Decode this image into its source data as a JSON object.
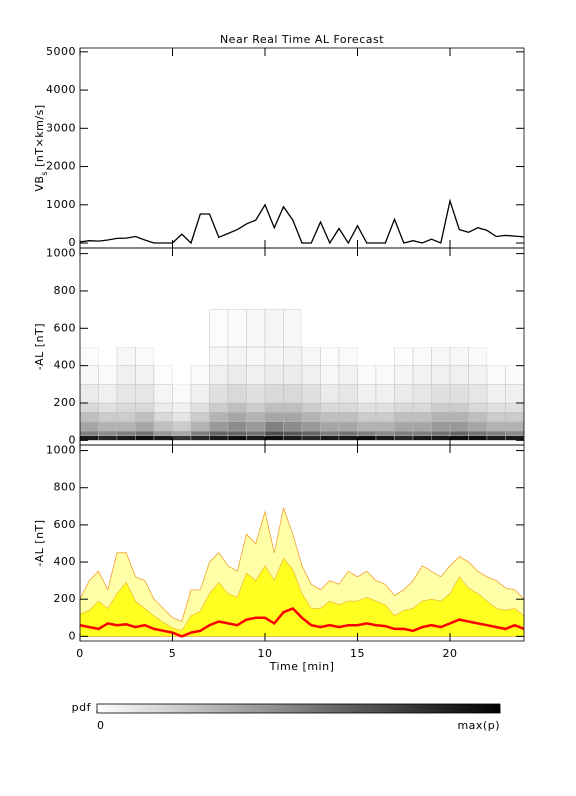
{
  "chart_data": [
    {
      "type": "line",
      "title": "Near Real Time AL Forecast",
      "ylabel": "VB",
      "ylabel_sub": "s",
      "ylabel_unit": "[nT×km/s]",
      "xlim": [
        0,
        24
      ],
      "xticks": [
        0,
        5,
        10,
        15,
        20
      ],
      "xticklabels": false,
      "ylim": [
        -130,
        5100
      ],
      "yticks": [
        0,
        1000,
        2000,
        3000,
        4000,
        5000
      ],
      "x": [
        0,
        0.5,
        1,
        1.5,
        2,
        2.5,
        3,
        3.5,
        4,
        4.5,
        5,
        5.5,
        6,
        6.5,
        7,
        7.5,
        8,
        8.5,
        9,
        9.5,
        10,
        10.5,
        11,
        11.5,
        12,
        12.5,
        13,
        13.5,
        14,
        14.5,
        15,
        15.5,
        16,
        16.5,
        17,
        17.5,
        18,
        18.5,
        19,
        19.5,
        20,
        20.5,
        21,
        21.5,
        22,
        22.5,
        23,
        23.5,
        24
      ],
      "series": [
        {
          "color": "#000000",
          "values": [
            30,
            60,
            50,
            80,
            120,
            130,
            170,
            80,
            0,
            0,
            0,
            230,
            0,
            760,
            760,
            150,
            250,
            350,
            500,
            600,
            1000,
            400,
            950,
            600,
            0,
            0,
            550,
            0,
            380,
            0,
            450,
            0,
            0,
            0,
            620,
            0,
            60,
            0,
            100,
            0,
            1100,
            350,
            280,
            400,
            330,
            170,
            200,
            180,
            160
          ]
        }
      ]
    },
    {
      "type": "heatmap",
      "ylabel": "-AL [nT]",
      "xlim": [
        0,
        24
      ],
      "xticks": [
        0,
        5,
        10,
        15,
        20
      ],
      "xticklabels": false,
      "ylim": [
        -25,
        1030
      ],
      "yticks": [
        0,
        200,
        400,
        600,
        800,
        1000
      ],
      "xbins": [
        0,
        1,
        2,
        3,
        4,
        5,
        6,
        7,
        8,
        9,
        10,
        11,
        12,
        13,
        14,
        15,
        16,
        17,
        18,
        19,
        20,
        21,
        22,
        23,
        24
      ],
      "ybins": [
        0,
        25,
        50,
        100,
        150,
        200,
        300,
        400,
        500,
        700
      ],
      "z": [
        [
          0.9,
          0.85,
          0.9,
          0.95,
          0.9,
          0.8,
          0.85,
          0.9,
          0.95,
          0.9,
          0.95,
          0.9,
          0.85,
          0.9,
          0.9,
          0.95,
          0.9,
          0.85,
          0.9,
          0.9,
          0.95,
          0.95,
          0.9,
          0.9
        ],
        [
          0.5,
          0.45,
          0.5,
          0.55,
          0.4,
          0.35,
          0.5,
          0.6,
          0.6,
          0.55,
          0.7,
          0.65,
          0.6,
          0.5,
          0.55,
          0.5,
          0.45,
          0.5,
          0.5,
          0.55,
          0.6,
          0.55,
          0.5,
          0.45
        ],
        [
          0.35,
          0.3,
          0.3,
          0.35,
          0.25,
          0.2,
          0.3,
          0.4,
          0.45,
          0.4,
          0.5,
          0.45,
          0.4,
          0.35,
          0.35,
          0.3,
          0.3,
          0.35,
          0.35,
          0.4,
          0.4,
          0.35,
          0.3,
          0.3
        ],
        [
          0.25,
          0.2,
          0.2,
          0.25,
          0.15,
          0.1,
          0.2,
          0.3,
          0.35,
          0.3,
          0.35,
          0.35,
          0.3,
          0.25,
          0.25,
          0.2,
          0.2,
          0.25,
          0.25,
          0.3,
          0.3,
          0.25,
          0.2,
          0.2
        ],
        [
          0.15,
          0.12,
          0.15,
          0.15,
          0.08,
          0.05,
          0.12,
          0.2,
          0.25,
          0.2,
          0.25,
          0.25,
          0.2,
          0.15,
          0.15,
          0.12,
          0.12,
          0.15,
          0.15,
          0.2,
          0.2,
          0.15,
          0.12,
          0.12
        ],
        [
          0.08,
          0.06,
          0.1,
          0.1,
          0.04,
          0.02,
          0.06,
          0.12,
          0.15,
          0.12,
          0.15,
          0.15,
          0.12,
          0.08,
          0.1,
          0.06,
          0.06,
          0.08,
          0.1,
          0.12,
          0.12,
          0.1,
          0.06,
          0.06
        ],
        [
          0.03,
          0.02,
          0.06,
          0.05,
          0.01,
          0,
          0.02,
          0.06,
          0.08,
          0.06,
          0.08,
          0.08,
          0.06,
          0.03,
          0.05,
          0.02,
          0.02,
          0.04,
          0.05,
          0.06,
          0.06,
          0.05,
          0.02,
          0.02
        ],
        [
          0.01,
          0,
          0.03,
          0.02,
          0,
          0,
          0,
          0.03,
          0.04,
          0.03,
          0.04,
          0.05,
          0.03,
          0.01,
          0.02,
          0,
          0,
          0.01,
          0.02,
          0.03,
          0.03,
          0.02,
          0,
          0
        ],
        [
          0,
          0,
          0,
          0,
          0,
          0,
          0,
          0.01,
          0.02,
          0.03,
          0.04,
          0.03,
          0,
          0,
          0,
          0,
          0,
          0,
          0,
          0,
          0,
          0,
          0,
          0
        ]
      ]
    },
    {
      "type": "band",
      "ylabel": "-AL [nT]",
      "xlabel": "Time [min]",
      "xlim": [
        0,
        24
      ],
      "xticks": [
        0,
        5,
        10,
        15,
        20
      ],
      "xticklabels": true,
      "ylim": [
        -25,
        1030
      ],
      "yticks": [
        0,
        200,
        400,
        600,
        800,
        1000
      ],
      "x": [
        0,
        0.5,
        1,
        1.5,
        2,
        2.5,
        3,
        3.5,
        4,
        4.5,
        5,
        5.5,
        6,
        6.5,
        7,
        7.5,
        8,
        8.5,
        9,
        9.5,
        10,
        10.5,
        11,
        11.5,
        12,
        12.5,
        13,
        13.5,
        14,
        14.5,
        15,
        15.5,
        16,
        16.5,
        17,
        17.5,
        18,
        18.5,
        19,
        19.5,
        20,
        20.5,
        21,
        21.5,
        22,
        22.5,
        23,
        23.5,
        24
      ],
      "series": [
        {
          "color": "#ffffa8",
          "edge_color": "#f0a030",
          "kind": "area",
          "values": [
            200,
            300,
            350,
            250,
            450,
            450,
            320,
            300,
            200,
            150,
            100,
            80,
            250,
            250,
            400,
            450,
            380,
            350,
            550,
            500,
            670,
            450,
            690,
            550,
            380,
            280,
            250,
            300,
            280,
            350,
            320,
            350,
            300,
            280,
            220,
            250,
            300,
            380,
            350,
            320,
            380,
            430,
            400,
            350,
            320,
            300,
            260,
            250,
            200
          ]
        },
        {
          "color": "#ffff20",
          "edge_color": "#f0c040",
          "kind": "area",
          "values": [
            120,
            140,
            190,
            150,
            230,
            290,
            190,
            150,
            110,
            75,
            45,
            30,
            110,
            135,
            230,
            290,
            230,
            210,
            340,
            300,
            380,
            300,
            420,
            360,
            230,
            150,
            150,
            190,
            170,
            190,
            190,
            210,
            190,
            170,
            110,
            140,
            150,
            190,
            200,
            190,
            230,
            320,
            260,
            230,
            190,
            150,
            140,
            150,
            110
          ]
        },
        {
          "color": "#ff0000",
          "kind": "line",
          "values": [
            60,
            50,
            40,
            70,
            60,
            65,
            50,
            60,
            40,
            30,
            20,
            0,
            20,
            30,
            60,
            80,
            70,
            60,
            90,
            100,
            100,
            70,
            130,
            150,
            100,
            60,
            50,
            60,
            50,
            60,
            60,
            70,
            60,
            55,
            40,
            40,
            30,
            50,
            60,
            50,
            70,
            90,
            80,
            70,
            60,
            50,
            40,
            60,
            40
          ]
        }
      ]
    },
    {
      "type": "colorbar",
      "label": "pdf",
      "clim": [
        0,
        1
      ],
      "ticks": [
        0,
        {
          "value": 1,
          "label": "max(p)"
        }
      ]
    }
  ]
}
